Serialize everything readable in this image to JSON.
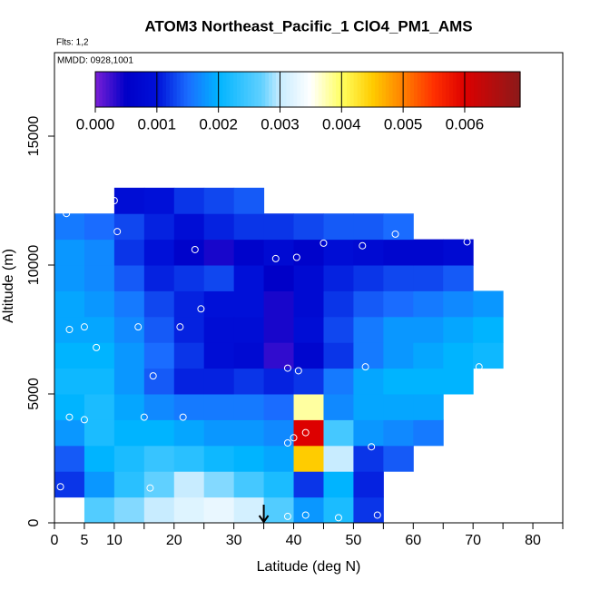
{
  "chart_data": {
    "type": "heatmap",
    "title": "ATOM3 Northeast_Pacific_1 ClO4_PM1_AMS",
    "annotations": [
      "Flts: 1,2",
      "MMDD: 0928,1001"
    ],
    "x_label": "Latitude (deg N)",
    "y_label": "Altitude (m)",
    "xlim": [
      0,
      85
    ],
    "ylim": [
      0,
      18240
    ],
    "xticks": [
      0,
      5,
      10,
      20,
      30,
      40,
      50,
      60,
      70,
      80
    ],
    "xticks_minor": [
      15,
      25,
      35,
      45,
      55,
      65,
      75,
      85
    ],
    "yticks": [
      0,
      5000,
      10000,
      15000
    ],
    "x_bins": [
      0,
      5,
      10,
      15,
      20,
      25,
      30,
      35,
      40,
      45,
      50,
      55,
      60,
      65,
      70,
      75
    ],
    "y_bins": [
      0,
      1000,
      2000,
      3000,
      4000,
      5000,
      6000,
      7000,
      8000,
      9000,
      10000,
      11000,
      12000,
      13000
    ],
    "values": [
      [
        null,
        0.0026,
        0.0028,
        0.003,
        0.0032,
        0.0033,
        0.0031,
        0.0026,
        0.0018,
        0.0022,
        0.0012,
        null,
        null,
        null,
        null
      ],
      [
        0.0012,
        0.0018,
        0.0023,
        0.0027,
        0.003,
        0.0028,
        0.0025,
        0.0022,
        0.0012,
        0.002,
        0.0011,
        null,
        null,
        null,
        null
      ],
      [
        0.0014,
        0.002,
        0.0022,
        0.0024,
        0.0023,
        0.0021,
        0.002,
        0.0019,
        0.0045,
        0.003,
        0.0012,
        0.0014,
        null,
        null,
        null
      ],
      [
        0.0018,
        0.0022,
        0.002,
        0.002,
        0.0019,
        0.0018,
        0.0018,
        0.0017,
        0.006,
        0.0025,
        0.0018,
        0.0017,
        0.0016,
        null,
        null
      ],
      [
        0.002,
        0.0022,
        0.0019,
        0.0017,
        0.0016,
        0.0016,
        0.0016,
        0.0015,
        0.0038,
        0.0017,
        0.0019,
        0.0019,
        0.0019,
        null,
        null
      ],
      [
        0.0021,
        0.0021,
        0.0018,
        0.0014,
        0.0011,
        0.0011,
        0.0012,
        0.0011,
        0.0012,
        0.0016,
        0.0019,
        0.002,
        0.002,
        0.002,
        null
      ],
      [
        0.002,
        0.002,
        0.0018,
        0.0015,
        0.0012,
        0.0009,
        0.0008,
        0.0003,
        0.0007,
        0.0012,
        0.0016,
        0.0018,
        0.0019,
        0.002,
        0.0021
      ],
      [
        0.0019,
        0.0019,
        0.0017,
        0.0014,
        0.0011,
        0.0009,
        0.0009,
        0.0004,
        0.0009,
        0.0013,
        0.0016,
        0.0018,
        0.0018,
        0.0019,
        0.002
      ],
      [
        0.0019,
        0.0018,
        0.0016,
        0.0013,
        0.0011,
        0.001,
        0.001,
        0.0004,
        0.0008,
        0.0012,
        0.0014,
        0.0015,
        0.0016,
        0.0017,
        0.0018
      ],
      [
        0.0018,
        0.0017,
        0.0014,
        0.0011,
        0.0012,
        0.0013,
        0.001,
        0.0005,
        0.0008,
        0.0011,
        0.0012,
        0.0013,
        0.0013,
        0.0014,
        null
      ],
      [
        0.0018,
        0.0017,
        0.0012,
        0.001,
        0.0006,
        0.0004,
        0.0006,
        0.0008,
        0.0006,
        0.0009,
        0.0008,
        0.0007,
        0.0007,
        0.0008,
        null
      ],
      [
        0.0016,
        0.0015,
        0.0013,
        0.0011,
        0.0009,
        0.0011,
        0.0012,
        0.0012,
        0.0013,
        0.0014,
        0.0014,
        0.0015,
        null,
        null,
        null
      ],
      [
        null,
        null,
        0.0009,
        0.001,
        0.0012,
        0.0013,
        0.0014,
        null,
        null,
        null,
        null,
        null,
        null,
        null,
        null
      ]
    ],
    "colorbar_lim": [
      0,
      0.0069
    ],
    "colorbar_ticks": [
      {
        "value": 0,
        "label": "0.000"
      },
      0.001,
      0.002,
      0.003,
      0.004,
      0.005,
      0.006
    ],
    "colorscale": [
      [
        0,
        "#7a1fd6"
      ],
      [
        0.0005,
        "#0000c8"
      ],
      [
        0.001,
        "#0010d8"
      ],
      [
        0.0015,
        "#1a6cff"
      ],
      [
        0.002,
        "#00b4ff"
      ],
      [
        0.0027,
        "#60d0ff"
      ],
      [
        0.003,
        "#c8ecff"
      ],
      [
        0.0035,
        "#ffffff"
      ],
      [
        0.004,
        "#ffff60"
      ],
      [
        0.0045,
        "#ffcc00"
      ],
      [
        0.005,
        "#ff8000"
      ],
      [
        0.0055,
        "#ff3000"
      ],
      [
        0.006,
        "#dd0000"
      ],
      [
        0.0069,
        "#8b1a1a"
      ]
    ],
    "points": {
      "color": "#ffffff",
      "x": [
        1,
        2.5,
        5,
        2.5,
        5,
        7,
        2,
        10,
        10.5,
        14,
        15,
        16,
        16.5,
        21,
        21.5,
        23.5,
        24.5,
        37,
        39,
        39,
        40,
        40.5,
        40.8,
        42,
        45,
        51.5,
        52,
        53,
        57,
        69,
        71,
        54,
        42,
        39,
        47.5
      ],
      "y": [
        1400,
        4100,
        4000,
        7500,
        7600,
        6800,
        12000,
        12500,
        11300,
        7600,
        4100,
        1350,
        5700,
        7600,
        4100,
        10600,
        8300,
        10250,
        6000,
        3100,
        3300,
        10300,
        5900,
        3500,
        10850,
        10750,
        6050,
        2950,
        11200,
        10900,
        6050,
        300,
        300,
        250,
        200
      ]
    },
    "arrow_x": 35
  }
}
